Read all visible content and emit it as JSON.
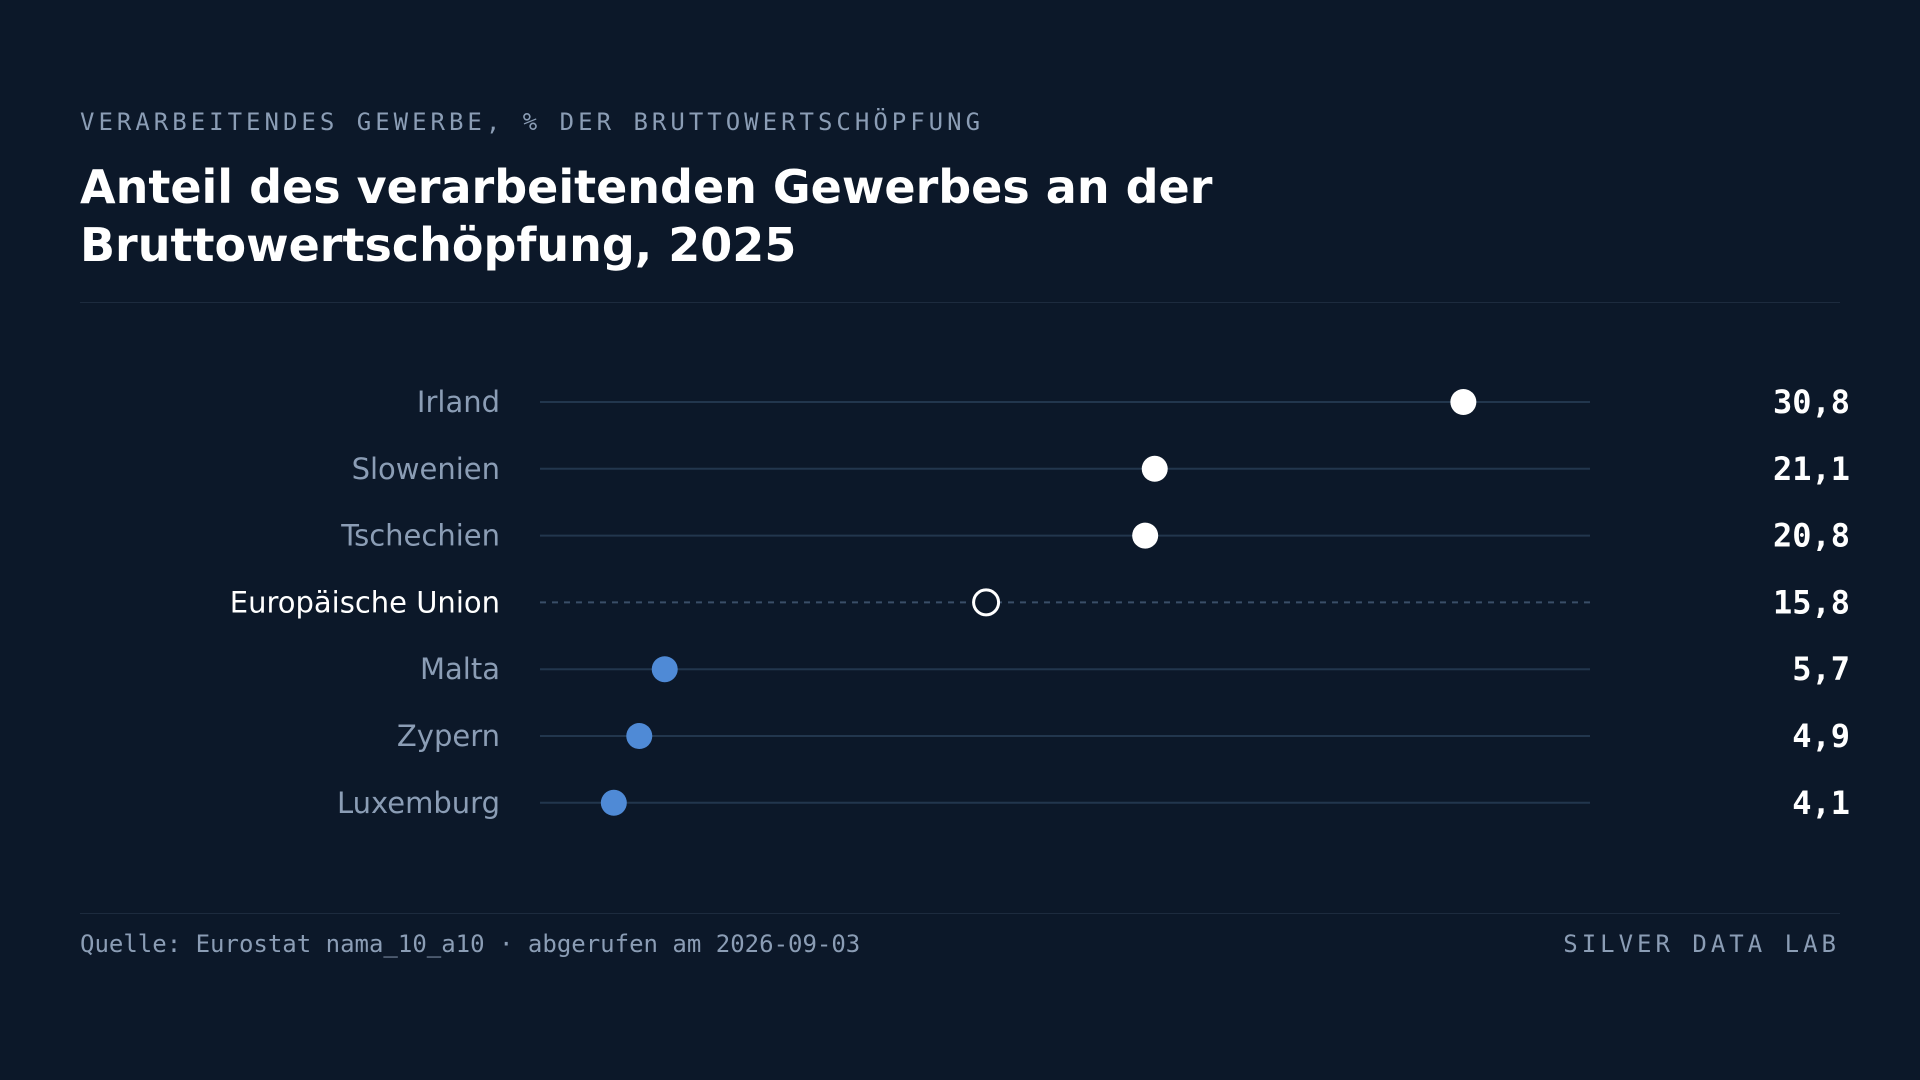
{
  "header": {
    "eyebrow": "VERARBEITENDES GEWERBE, % DER BRUTTOWERTSCHÖPFUNG",
    "title": "Anteil des verarbeitenden Gewerbes an der Bruttowertschöpfung, 2025"
  },
  "footer": {
    "source": "Quelle: Eurostat nama_10_a10 · abgerufen am 2026-09-03",
    "brand": "SILVER DATA LAB"
  },
  "colors": {
    "background": "#0c1829",
    "high_dot": "#ffffff",
    "low_dot": "#4f8ad6",
    "reference_dot_stroke": "#ffffff",
    "track": "#22364d",
    "label": "#8b9db5",
    "reference_label": "#ffffff",
    "value": "#ffffff"
  },
  "chart_data": {
    "type": "scatter",
    "style": "dot-plot",
    "title": "Anteil des verarbeitenden Gewerbes an der Bruttowertschöpfung, 2025",
    "subtitle": "VERARBEITENDES GEWERBE, % DER BRUTTOWERTSCHÖPFUNG",
    "xlim": [
      2,
      35
    ],
    "grid": false,
    "legend": "none",
    "categories": [
      "Irland",
      "Slowenien",
      "Tschechien",
      "Europäische Union",
      "Malta",
      "Zypern",
      "Luxemburg"
    ],
    "values": [
      30.8,
      21.1,
      20.8,
      15.8,
      5.7,
      4.9,
      4.1
    ],
    "value_labels": [
      "30,8",
      "21,1",
      "20,8",
      "15,8",
      "5,7",
      "4,9",
      "4,1"
    ],
    "groups": [
      "high",
      "high",
      "high",
      "reference",
      "low",
      "low",
      "low"
    ]
  }
}
